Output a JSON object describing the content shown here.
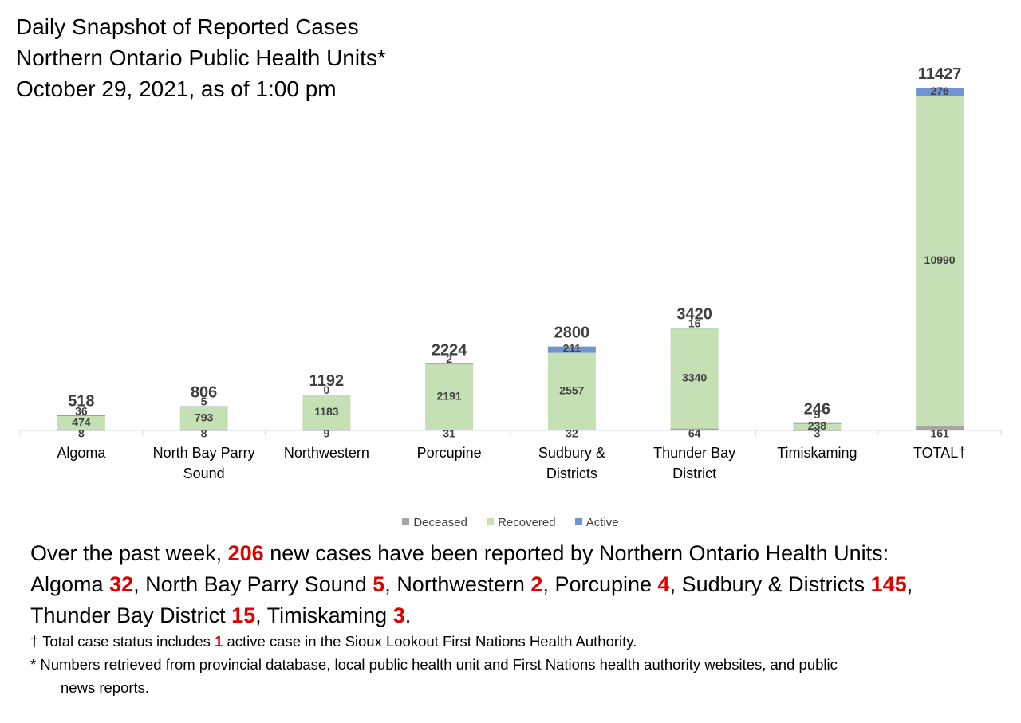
{
  "title_lines": [
    "Daily Snapshot of Reported Cases",
    "Northern Ontario Public Health Units*",
    "October 29, 2021, as of 1:00 pm"
  ],
  "colors": {
    "deceased": "#a5a5a5",
    "recovered": "#c5e0b4",
    "active": "#7094d1",
    "highlight": "#e00000",
    "label": "#404040"
  },
  "legend": [
    {
      "key": "deceased",
      "label": "Deceased"
    },
    {
      "key": "recovered",
      "label": "Recovered"
    },
    {
      "key": "active",
      "label": "Active"
    }
  ],
  "chart_data": {
    "type": "bar",
    "stacked": true,
    "categories": [
      "Algoma",
      "North Bay Parry Sound",
      "Northwestern",
      "Porcupine",
      "Sudbury & Districts",
      "Thunder Bay District",
      "Timiskaming",
      "TOTAL†"
    ],
    "category_lines": [
      [
        "Algoma"
      ],
      [
        "North Bay Parry",
        "Sound"
      ],
      [
        "Northwestern"
      ],
      [
        "Porcupine"
      ],
      [
        "Sudbury &",
        "Districts"
      ],
      [
        "Thunder Bay",
        "District"
      ],
      [
        "Timiskaming"
      ],
      [
        "TOTAL†"
      ]
    ],
    "series": [
      {
        "name": "Deceased",
        "values": [
          8,
          8,
          9,
          31,
          32,
          64,
          3,
          161
        ]
      },
      {
        "name": "Recovered",
        "values": [
          474,
          793,
          1183,
          2191,
          2557,
          3340,
          238,
          10990
        ]
      },
      {
        "name": "Active",
        "values": [
          36,
          5,
          0,
          2,
          211,
          16,
          5,
          276
        ]
      }
    ],
    "totals": [
      518,
      806,
      1192,
      2224,
      2800,
      3420,
      246,
      11427
    ],
    "ylim": [
      0,
      11427
    ],
    "grid": false,
    "legend_position": "bottom"
  },
  "summary": {
    "intro": "Over the past week, ",
    "week_total": "206",
    "intro_end": " new cases have been reported by Northern Ontario Health Units:",
    "items": [
      {
        "name": "Algoma ",
        "value": "32",
        "sep": ", "
      },
      {
        "name": "North Bay Parry Sound ",
        "value": "5",
        "sep": ", "
      },
      {
        "name": "Northwestern ",
        "value": "2",
        "sep": ", "
      },
      {
        "name": "Porcupine ",
        "value": "4",
        "sep": ", "
      },
      {
        "name": "Sudbury & Districts ",
        "value": "145",
        "sep": ", "
      },
      {
        "name": "Thunder Bay District ",
        "value": "15",
        "sep": ", "
      },
      {
        "name": "Timiskaming ",
        "value": "3",
        "sep": "."
      }
    ]
  },
  "footnotes": {
    "dagger_pre": "† Total case status includes ",
    "dagger_value": "1",
    "dagger_post": " active case in the Sioux Lookout First Nations Health Authority.",
    "star_line1": "* Numbers retrieved from provincial database, local public health unit and First Nations health authority websites, and public",
    "star_line2": "news reports."
  }
}
